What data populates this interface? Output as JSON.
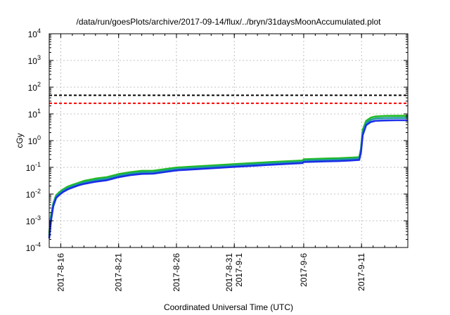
{
  "chart_data": {
    "type": "line",
    "title": "/data/run/goesPlots/archive/2017-09-14/flux/../bryn/31daysMoonAccumulated.plot",
    "xlabel": "Coordinated Universal Time (UTC)",
    "ylabel": "cGy",
    "yscale": "log",
    "ylim": [
      0.0001,
      10000
    ],
    "xlim": [
      0,
      31
    ],
    "grid": true,
    "legend": "none",
    "x_ticks": [
      {
        "x": 1,
        "label": [
          "2017-8-16"
        ]
      },
      {
        "x": 6,
        "label": [
          "2017-8-21"
        ]
      },
      {
        "x": 11,
        "label": [
          "2017-8-26"
        ]
      },
      {
        "x": 16,
        "label": [
          "2017-8-31",
          "2017-9-1"
        ]
      },
      {
        "x": 22,
        "label": [
          "2017-9-6"
        ]
      },
      {
        "x": 27,
        "label": [
          "2017-9-11"
        ]
      }
    ],
    "y_ticks": [
      {
        "y": 0.0001,
        "base": "10",
        "exp": "-4"
      },
      {
        "y": 0.001,
        "base": "10",
        "exp": "-3"
      },
      {
        "y": 0.01,
        "base": "10",
        "exp": "-2"
      },
      {
        "y": 0.1,
        "base": "10",
        "exp": "-1"
      },
      {
        "y": 1,
        "base": "10",
        "exp": "0"
      },
      {
        "y": 10,
        "base": "10",
        "exp": "1"
      },
      {
        "y": 100,
        "base": "10",
        "exp": "2"
      },
      {
        "y": 1000,
        "base": "10",
        "exp": "3"
      },
      {
        "y": 10000,
        "base": "10",
        "exp": "4"
      }
    ],
    "reference_lines": [
      {
        "y": 50,
        "color": "#000000",
        "style": "dashed"
      },
      {
        "y": 25,
        "color": "#ff0000",
        "style": "dashed"
      }
    ],
    "series": [
      {
        "color": "#22bb22",
        "x": [
          0,
          0.15,
          0.35,
          0.6,
          0.9,
          1.2,
          1.6,
          2.0,
          2.5,
          3,
          4,
          5,
          6,
          7,
          8,
          9,
          10,
          11,
          12,
          14,
          16,
          18,
          20,
          21.9,
          22,
          24,
          25,
          26,
          26.8,
          26.95,
          27.1,
          27.4,
          27.8,
          28.2,
          29,
          30,
          31
        ],
        "y": [
          0.00035,
          0.0015,
          0.0045,
          0.009,
          0.012,
          0.015,
          0.019,
          0.022,
          0.026,
          0.031,
          0.038,
          0.043,
          0.056,
          0.066,
          0.074,
          0.075,
          0.086,
          0.098,
          0.104,
          0.117,
          0.132,
          0.148,
          0.165,
          0.18,
          0.2,
          0.215,
          0.22,
          0.23,
          0.24,
          0.5,
          2.5,
          5.5,
          7.2,
          8.0,
          8.4,
          8.5,
          8.5
        ]
      },
      {
        "color": "#1c9c9c",
        "x": [
          0,
          0.15,
          0.35,
          0.6,
          0.9,
          1.2,
          1.6,
          2.0,
          2.5,
          3,
          4,
          5,
          6,
          7,
          8,
          9,
          10,
          11,
          12,
          14,
          16,
          18,
          20,
          21.9,
          22,
          24,
          25,
          26,
          26.8,
          26.95,
          27.1,
          27.4,
          27.8,
          28.2,
          29,
          30,
          31
        ],
        "y": [
          0.00028,
          0.0012,
          0.004,
          0.008,
          0.0105,
          0.0135,
          0.0165,
          0.0195,
          0.023,
          0.027,
          0.033,
          0.038,
          0.049,
          0.058,
          0.065,
          0.066,
          0.076,
          0.087,
          0.093,
          0.104,
          0.118,
          0.132,
          0.148,
          0.162,
          0.178,
          0.19,
          0.195,
          0.205,
          0.215,
          0.42,
          2.0,
          4.6,
          6.0,
          6.7,
          7.0,
          7.1,
          7.1
        ]
      },
      {
        "color": "#1a2ee8",
        "x": [
          0,
          0.15,
          0.35,
          0.6,
          0.9,
          1.2,
          1.6,
          2.0,
          2.5,
          3,
          4,
          5,
          6,
          7,
          8,
          9,
          10,
          11,
          12,
          14,
          16,
          18,
          20,
          21.9,
          22,
          24,
          25,
          26,
          26.8,
          26.95,
          27.1,
          27.4,
          27.8,
          28.2,
          29,
          30,
          31
        ],
        "y": [
          0.00022,
          0.001,
          0.0035,
          0.0072,
          0.0095,
          0.012,
          0.015,
          0.0175,
          0.021,
          0.024,
          0.029,
          0.033,
          0.043,
          0.051,
          0.057,
          0.058,
          0.067,
          0.077,
          0.082,
          0.092,
          0.104,
          0.117,
          0.131,
          0.144,
          0.158,
          0.168,
          0.172,
          0.18,
          0.19,
          0.36,
          1.6,
          3.8,
          5.0,
          5.5,
          5.7,
          5.8,
          5.8
        ]
      }
    ]
  }
}
